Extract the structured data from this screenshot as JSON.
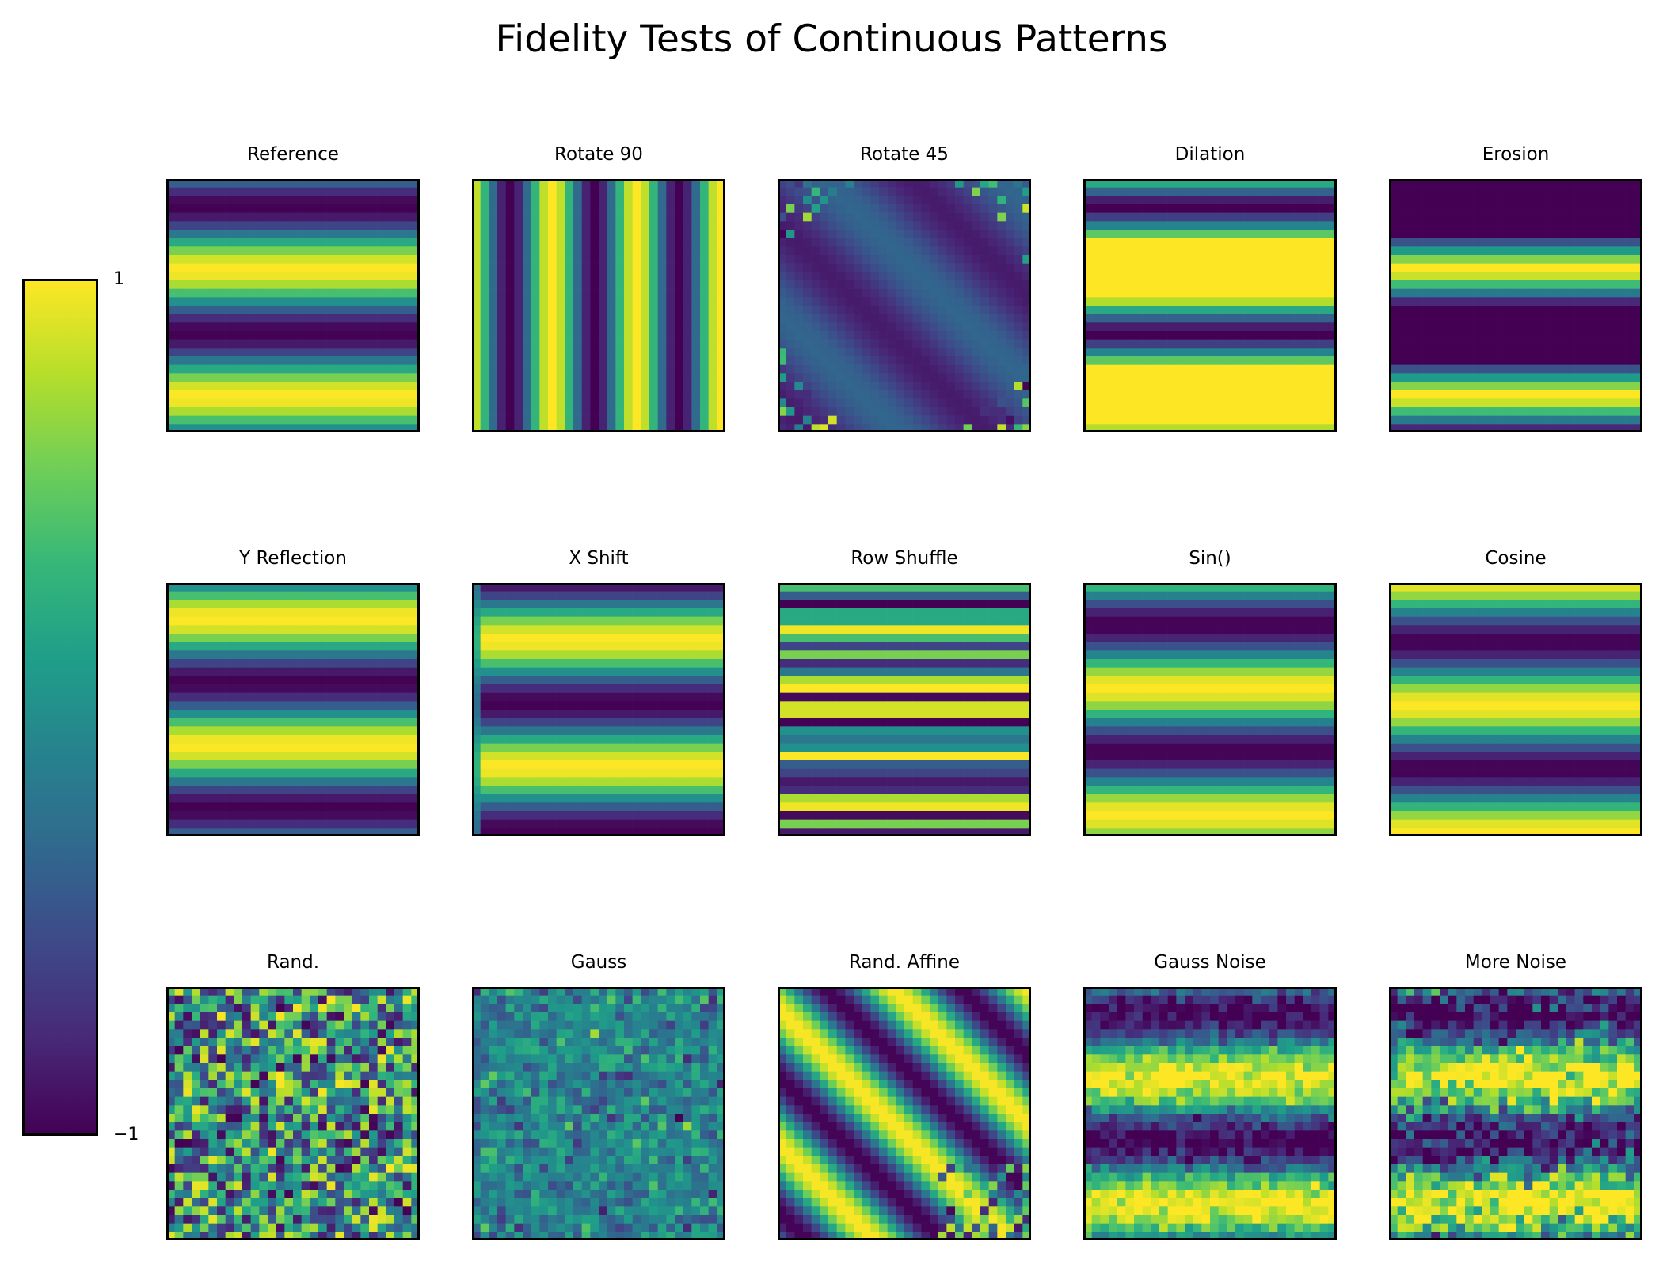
{
  "title": "Fidelity Tests of Continuous Patterns",
  "colormap": {
    "name": "viridis",
    "stops": [
      "#440154",
      "#482878",
      "#3e4989",
      "#31688e",
      "#26828e",
      "#1f9e89",
      "#35b779",
      "#6ece58",
      "#b5de2b",
      "#fde725"
    ]
  },
  "colorbar": {
    "max_label": "1",
    "min_label": "−1",
    "vmin": -1,
    "vmax": 1
  },
  "chart_data": {
    "type": "heatmap",
    "grid_size": 30,
    "value_range": [
      -1,
      1
    ],
    "panels": [
      {
        "title": "Reference",
        "pattern": "sine rows, ~2 periods vertically"
      },
      {
        "title": "Rotate 90",
        "pattern": "sine columns, ~3 periods horizontally"
      },
      {
        "title": "Rotate 45",
        "pattern": "diagonal low-contrast bands with noisy corners"
      },
      {
        "title": "Dilation",
        "pattern": "wide high bands, thin low bands"
      },
      {
        "title": "Erosion",
        "pattern": "wide low bands, thin high bands"
      },
      {
        "title": "Y Reflection",
        "pattern": "reference flipped vertically"
      },
      {
        "title": "X Shift",
        "pattern": "reference shifted, edge column offset"
      },
      {
        "title": "Row Shuffle",
        "pattern": "rows of reference randomly permuted"
      },
      {
        "title": "Sin()",
        "pattern": "sine rows, phase shifted"
      },
      {
        "title": "Cosine",
        "pattern": "cosine rows"
      },
      {
        "title": "Rand.",
        "pattern": "uniform random values"
      },
      {
        "title": "Gauss",
        "pattern": "gaussian random values near zero"
      },
      {
        "title": "Rand. Affine",
        "pattern": "diagonal sine bands with noisy corner"
      },
      {
        "title": "Gauss Noise",
        "pattern": "reference plus gaussian noise"
      },
      {
        "title": "More Noise",
        "pattern": "reference plus stronger noise"
      }
    ]
  }
}
